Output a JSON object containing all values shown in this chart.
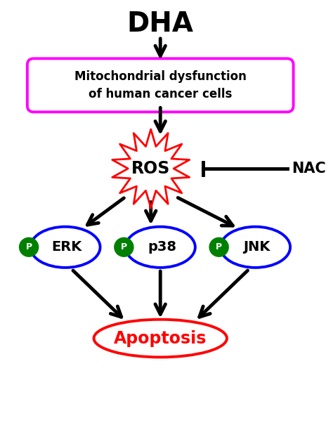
{
  "title": "DHA",
  "box1_text": "Mitochondrial dysfunction\nof human cancer cells",
  "box1_color": "#FF00FF",
  "ros_text": "ROS",
  "nac_text": "NAC",
  "erk_text": "ERK",
  "p38_text": "p38",
  "jnk_text": "JNK",
  "apoptosis_text": "Apoptosis",
  "apoptosis_color": "#FF0000",
  "ellipse_color": "#0000FF",
  "p_circle_color": "#008000",
  "arrow_color": "#000000",
  "ros_star_color": "#FF0000",
  "bg_color": "#FFFFFF",
  "figsize": [
    4.74,
    6.32
  ],
  "dpi": 100
}
